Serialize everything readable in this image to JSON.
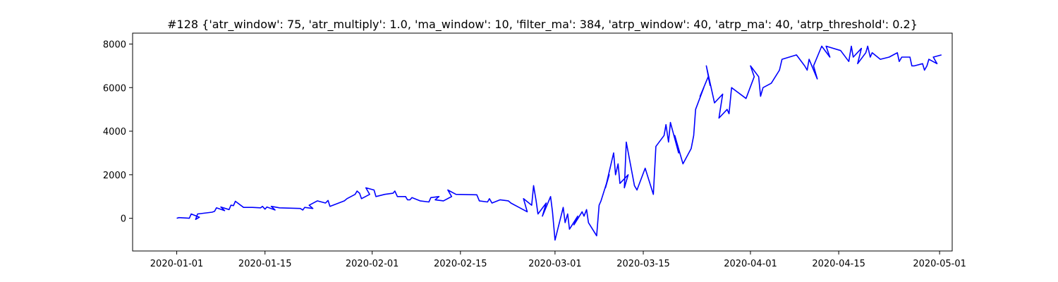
{
  "chart_data": {
    "type": "line",
    "title": "#128 {'atr_window': 75, 'atr_multiply': 1.0, 'ma_window': 10, 'filter_ma': 384, 'atrp_window': 40, 'atrp_ma': 40, 'atrp_threshold': 0.2}",
    "xlabel": "",
    "ylabel": "",
    "grid": false,
    "legend": "none",
    "xlim": [
      "2019-12-25",
      "2020-05-03"
    ],
    "ylim": [
      -1500,
      8500
    ],
    "x_ticks": [
      "2020-01-01",
      "2020-01-15",
      "2020-02-01",
      "2020-02-15",
      "2020-03-01",
      "2020-03-15",
      "2020-04-01",
      "2020-04-15",
      "2020-05-01"
    ],
    "y_ticks": [
      0,
      2000,
      4000,
      6000,
      8000
    ],
    "series": [
      {
        "color": "#0000ff",
        "points": [
          [
            "2020-01-01",
            0
          ],
          [
            "2020-01-01",
            30
          ],
          [
            "2020-01-02",
            10
          ],
          [
            "2020-01-03",
            0
          ],
          [
            "2020-01-03",
            200
          ],
          [
            "2020-01-04",
            50
          ],
          [
            "2020-01-04",
            -50
          ],
          [
            "2020-01-04",
            200
          ],
          [
            "2020-01-06",
            280
          ],
          [
            "2020-01-07",
            320
          ],
          [
            "2020-01-07",
            480
          ],
          [
            "2020-01-08",
            350
          ],
          [
            "2020-01-08",
            520
          ],
          [
            "2020-01-09",
            400
          ],
          [
            "2020-01-09",
            600
          ],
          [
            "2020-01-10",
            580
          ],
          [
            "2020-01-10",
            780
          ],
          [
            "2020-01-11",
            500
          ],
          [
            "2020-01-13",
            500
          ],
          [
            "2020-01-14",
            480
          ],
          [
            "2020-01-14",
            550
          ],
          [
            "2020-01-15",
            420
          ],
          [
            "2020-01-15",
            520
          ],
          [
            "2020-01-16",
            380
          ],
          [
            "2020-01-16",
            550
          ],
          [
            "2020-01-17",
            480
          ],
          [
            "2020-01-20",
            450
          ],
          [
            "2020-01-21",
            380
          ],
          [
            "2020-01-21",
            500
          ],
          [
            "2020-01-22",
            450
          ],
          [
            "2020-01-22",
            600
          ],
          [
            "2020-01-23",
            800
          ],
          [
            "2020-01-24",
            700
          ],
          [
            "2020-01-25",
            820
          ],
          [
            "2020-01-25",
            550
          ],
          [
            "2020-01-27",
            800
          ],
          [
            "2020-01-28",
            900
          ],
          [
            "2020-01-29",
            1100
          ],
          [
            "2020-01-29",
            1250
          ],
          [
            "2020-01-30",
            1150
          ],
          [
            "2020-01-30",
            900
          ],
          [
            "2020-01-31",
            1100
          ],
          [
            "2020-01-31",
            1400
          ],
          [
            "2020-02-01",
            1300
          ],
          [
            "2020-02-01",
            1000
          ],
          [
            "2020-02-03",
            1100
          ],
          [
            "2020-02-04",
            1150
          ],
          [
            "2020-02-04",
            1250
          ],
          [
            "2020-02-05",
            1000
          ],
          [
            "2020-02-06",
            1000
          ],
          [
            "2020-02-06",
            850
          ],
          [
            "2020-02-07",
            850
          ],
          [
            "2020-02-07",
            950
          ],
          [
            "2020-02-08",
            800
          ],
          [
            "2020-02-10",
            750
          ],
          [
            "2020-02-10",
            950
          ],
          [
            "2020-02-11",
            1000
          ],
          [
            "2020-02-11",
            850
          ],
          [
            "2020-02-12",
            800
          ],
          [
            "2020-02-13",
            1000
          ],
          [
            "2020-02-13",
            1300
          ],
          [
            "2020-02-14",
            1100
          ],
          [
            "2020-02-17",
            1080
          ],
          [
            "2020-02-18",
            800
          ],
          [
            "2020-02-19",
            750
          ],
          [
            "2020-02-19",
            900
          ],
          [
            "2020-02-20",
            700
          ],
          [
            "2020-02-21",
            850
          ],
          [
            "2020-02-22",
            800
          ],
          [
            "2020-02-23",
            700
          ],
          [
            "2020-02-24",
            500
          ],
          [
            "2020-02-25",
            300
          ],
          [
            "2020-02-25",
            900
          ],
          [
            "2020-02-26",
            600
          ],
          [
            "2020-02-26",
            1500
          ],
          [
            "2020-02-27",
            800
          ],
          [
            "2020-02-27",
            200
          ],
          [
            "2020-02-28",
            700
          ],
          [
            "2020-02-28",
            100
          ],
          [
            "2020-02-29",
            1000
          ],
          [
            "2020-02-29",
            300
          ],
          [
            "2020-03-01",
            -1000
          ],
          [
            "2020-03-02",
            500
          ],
          [
            "2020-03-02",
            -200
          ],
          [
            "2020-03-03",
            200
          ],
          [
            "2020-03-03",
            -500
          ],
          [
            "2020-03-04",
            100
          ],
          [
            "2020-03-04",
            -300
          ],
          [
            "2020-03-05",
            300
          ],
          [
            "2020-03-05",
            100
          ],
          [
            "2020-03-06",
            400
          ],
          [
            "2020-03-06",
            -200
          ],
          [
            "2020-03-07",
            -800
          ],
          [
            "2020-03-08",
            600
          ],
          [
            "2020-03-08",
            800
          ],
          [
            "2020-03-09",
            2000
          ],
          [
            "2020-03-09",
            1400
          ],
          [
            "2020-03-10",
            3000
          ],
          [
            "2020-03-10",
            2000
          ],
          [
            "2020-03-11",
            2500
          ],
          [
            "2020-03-11",
            1600
          ],
          [
            "2020-03-12",
            2000
          ],
          [
            "2020-03-12",
            1400
          ],
          [
            "2020-03-12",
            3500
          ],
          [
            "2020-03-13",
            1500
          ],
          [
            "2020-03-14",
            1300
          ],
          [
            "2020-03-15",
            2300
          ],
          [
            "2020-03-16",
            1100
          ],
          [
            "2020-03-17",
            3300
          ],
          [
            "2020-03-18",
            3800
          ],
          [
            "2020-03-18",
            4300
          ],
          [
            "2020-03-19",
            3500
          ],
          [
            "2020-03-19",
            4400
          ],
          [
            "2020-03-20",
            3000
          ],
          [
            "2020-03-20",
            3800
          ],
          [
            "2020-03-21",
            2500
          ],
          [
            "2020-03-22",
            3200
          ],
          [
            "2020-03-23",
            3800
          ],
          [
            "2020-03-23",
            5000
          ],
          [
            "2020-03-24",
            6000
          ],
          [
            "2020-03-24",
            5600
          ],
          [
            "2020-03-25",
            6500
          ],
          [
            "2020-03-25",
            6100
          ],
          [
            "2020-03-25",
            7000
          ],
          [
            "2020-03-26",
            5300
          ],
          [
            "2020-03-27",
            5700
          ],
          [
            "2020-03-27",
            4600
          ],
          [
            "2020-03-28",
            5000
          ],
          [
            "2020-03-28",
            4800
          ],
          [
            "2020-03-29",
            6000
          ],
          [
            "2020-03-31",
            5500
          ],
          [
            "2020-04-01",
            6500
          ],
          [
            "2020-04-01",
            7000
          ],
          [
            "2020-04-02",
            6500
          ],
          [
            "2020-04-02",
            5600
          ],
          [
            "2020-04-03",
            6000
          ],
          [
            "2020-04-04",
            6200
          ],
          [
            "2020-04-05",
            6800
          ],
          [
            "2020-04-06",
            7300
          ],
          [
            "2020-04-08",
            7500
          ],
          [
            "2020-04-09",
            7000
          ],
          [
            "2020-04-10",
            6800
          ],
          [
            "2020-04-10",
            7300
          ],
          [
            "2020-04-11",
            6400
          ],
          [
            "2020-04-11",
            7000
          ],
          [
            "2020-04-12",
            7900
          ],
          [
            "2020-04-13",
            7400
          ],
          [
            "2020-04-13",
            7900
          ],
          [
            "2020-04-15",
            7700
          ],
          [
            "2020-04-16",
            7200
          ],
          [
            "2020-04-17",
            7900
          ],
          [
            "2020-04-17",
            7400
          ],
          [
            "2020-04-18",
            7800
          ],
          [
            "2020-04-18",
            7100
          ],
          [
            "2020-04-19",
            7600
          ],
          [
            "2020-04-19",
            7900
          ],
          [
            "2020-04-20",
            7400
          ],
          [
            "2020-04-20",
            7600
          ],
          [
            "2020-04-21",
            7300
          ],
          [
            "2020-04-23",
            7400
          ],
          [
            "2020-04-24",
            7600
          ],
          [
            "2020-04-24",
            7200
          ],
          [
            "2020-04-25",
            7400
          ],
          [
            "2020-04-26",
            7400
          ],
          [
            "2020-04-26",
            7000
          ],
          [
            "2020-04-27",
            7000
          ],
          [
            "2020-04-28",
            7100
          ],
          [
            "2020-04-28",
            6800
          ],
          [
            "2020-04-29",
            7000
          ],
          [
            "2020-04-29",
            7300
          ],
          [
            "2020-04-30",
            7100
          ],
          [
            "2020-04-30",
            7400
          ],
          [
            "2020-05-01",
            7500
          ]
        ]
      }
    ]
  }
}
